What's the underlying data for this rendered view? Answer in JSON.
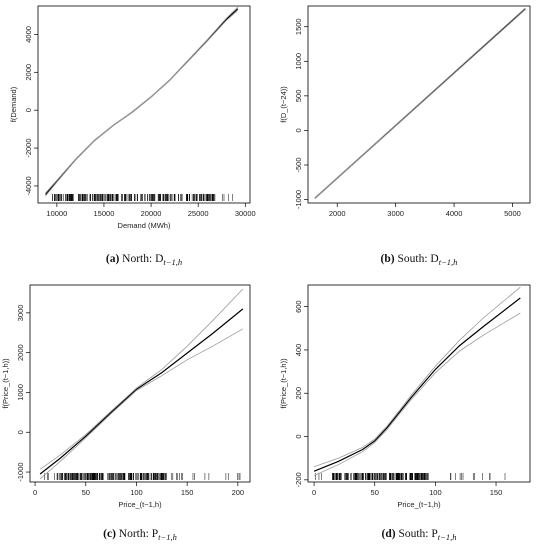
{
  "chart_data": [
    {
      "type": "line",
      "caption_label": "(a)",
      "caption_text": " North: D",
      "caption_sub": "t−1,h",
      "xlabel": "Demand (MWh)",
      "ylabel": "f(Demand)",
      "xlim": [
        8000,
        30500
      ],
      "ylim": [
        -4900,
        5500
      ],
      "xticks": [
        10000,
        15000,
        20000,
        25000,
        30000
      ],
      "yticks": [
        -4000,
        -2000,
        0,
        2000,
        4000
      ],
      "series": [
        {
          "role": "fit",
          "x": [
            8800,
            10000,
            12000,
            14000,
            16000,
            18000,
            20000,
            22000,
            24000,
            26000,
            28000,
            29200
          ],
          "y": [
            -4450,
            -3750,
            -2600,
            -1600,
            -800,
            -100,
            700,
            1600,
            2650,
            3700,
            4800,
            5350
          ]
        },
        {
          "role": "upper",
          "x": [
            8800,
            10000,
            12000,
            14000,
            16000,
            18000,
            20000,
            22000,
            24000,
            26000,
            28000,
            29200
          ],
          "y": [
            -4370,
            -3700,
            -2570,
            -1580,
            -785,
            -90,
            715,
            1620,
            2680,
            3740,
            4860,
            5440
          ]
        },
        {
          "role": "lower",
          "x": [
            8800,
            10000,
            12000,
            14000,
            16000,
            18000,
            20000,
            22000,
            24000,
            26000,
            28000,
            29200
          ],
          "y": [
            -4530,
            -3800,
            -2630,
            -1620,
            -815,
            -110,
            685,
            1580,
            2620,
            3660,
            4740,
            5260
          ]
        }
      ],
      "rug": {
        "min": 8800,
        "max": 29200,
        "dense_min": 9500,
        "dense_max": 27000,
        "count": 260
      }
    },
    {
      "type": "line",
      "caption_label": "(b)",
      "caption_text": " South: D",
      "caption_sub": "t−1,h",
      "xlabel": "",
      "ylabel": "f(D_(t−24))",
      "xlim": [
        1500,
        5300
      ],
      "ylim": [
        -1050,
        1800
      ],
      "xticks": [
        2000,
        3000,
        4000,
        5000
      ],
      "yticks": [
        -1000,
        -500,
        0,
        500,
        1000,
        1500
      ],
      "series": [
        {
          "role": "fit",
          "x": [
            1620,
            5220
          ],
          "y": [
            -980,
            1760
          ]
        },
        {
          "role": "upper",
          "x": [
            1620,
            5220
          ],
          "y": [
            -972,
            1772
          ]
        },
        {
          "role": "lower",
          "x": [
            1620,
            5220
          ],
          "y": [
            -988,
            1748
          ]
        }
      ]
    },
    {
      "type": "line",
      "caption_label": "(c)",
      "caption_text": " North: P",
      "caption_sub": "t−1,h",
      "xlabel": "Price_(t−1,h)",
      "ylabel": "f(Price_(t−1,h))",
      "xlim": [
        -5,
        212
      ],
      "ylim": [
        -1250,
        3700
      ],
      "xticks": [
        0,
        50,
        100,
        150,
        200
      ],
      "yticks": [
        -1000,
        0,
        1000,
        2000,
        3000
      ],
      "series": [
        {
          "role": "fit",
          "x": [
            5,
            25,
            50,
            75,
            100,
            125,
            150,
            175,
            205
          ],
          "y": [
            -1050,
            -650,
            -100,
            500,
            1080,
            1500,
            1990,
            2480,
            3100
          ]
        },
        {
          "role": "upper",
          "x": [
            5,
            25,
            50,
            75,
            100,
            125,
            150,
            175,
            205
          ],
          "y": [
            -930,
            -570,
            -60,
            535,
            1110,
            1580,
            2160,
            2800,
            3600
          ]
        },
        {
          "role": "lower",
          "x": [
            5,
            25,
            50,
            75,
            100,
            125,
            150,
            175,
            205
          ],
          "y": [
            -1170,
            -730,
            -140,
            465,
            1050,
            1420,
            1820,
            2160,
            2600
          ]
        }
      ],
      "rug": {
        "min": 5,
        "max": 205,
        "dense_min": 20,
        "dense_max": 130,
        "count": 240
      }
    },
    {
      "type": "line",
      "caption_label": "(d)",
      "caption_text": " South: P",
      "caption_sub": "t−1,h",
      "xlabel": "Price_(t−1,h)",
      "ylabel": "f(Price_(t−1,h))",
      "xlim": [
        -5,
        178
      ],
      "ylim": [
        -210,
        700
      ],
      "xticks": [
        0,
        50,
        100,
        150
      ],
      "yticks": [
        -200,
        0,
        200,
        400,
        600
      ],
      "series": [
        {
          "role": "fit",
          "x": [
            0,
            20,
            40,
            50,
            60,
            70,
            80,
            100,
            120,
            140,
            170
          ],
          "y": [
            -160,
            -115,
            -60,
            -20,
            40,
            110,
            180,
            310,
            420,
            510,
            640
          ]
        },
        {
          "role": "upper",
          "x": [
            0,
            20,
            40,
            50,
            60,
            70,
            80,
            100,
            120,
            140,
            170
          ],
          "y": [
            -140,
            -100,
            -50,
            -12,
            48,
            118,
            190,
            325,
            445,
            550,
            690
          ]
        },
        {
          "role": "lower",
          "x": [
            0,
            20,
            40,
            50,
            60,
            70,
            80,
            100,
            120,
            140,
            170
          ],
          "y": [
            -180,
            -130,
            -70,
            -28,
            32,
            102,
            170,
            295,
            395,
            470,
            570
          ]
        }
      ],
      "rug": {
        "min": 0,
        "max": 170,
        "dense_min": 15,
        "dense_max": 95,
        "count": 230
      }
    }
  ]
}
